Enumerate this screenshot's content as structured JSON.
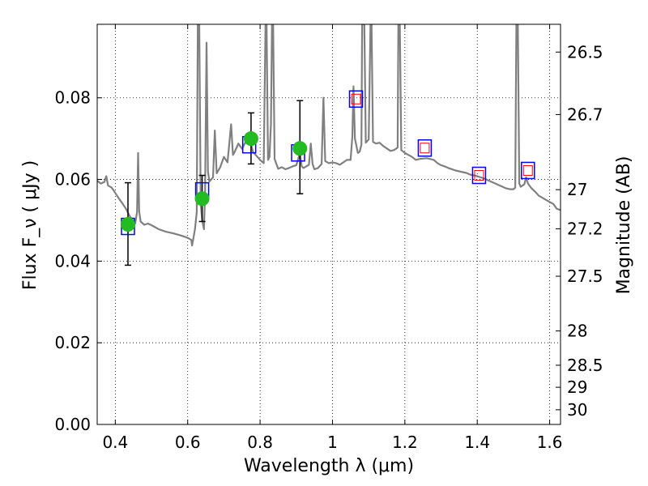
{
  "chart_data": {
    "type": "scatter",
    "xlabel": "Wavelength  λ (μm)",
    "ylabel": "Flux  F_ν  ( μJy )",
    "y2label": "Magnitude (AB)",
    "xlim": [
      0.35,
      1.63
    ],
    "ylim": [
      0.0,
      0.098
    ],
    "grid": true,
    "x_ticks": [
      0.4,
      0.6,
      0.8,
      1.0,
      1.2,
      1.4,
      1.6
    ],
    "x_tick_labels": [
      "0.4",
      "0.6",
      "0.8",
      "1",
      "1.2",
      "1.4",
      "1.6"
    ],
    "y_ticks": [
      0.0,
      0.02,
      0.04,
      0.06,
      0.08
    ],
    "y_tick_labels": [
      "0.00",
      "0.02",
      "0.04",
      "0.06",
      "0.08"
    ],
    "mag_ticks": [
      {
        "label": "26.5",
        "flux": 0.0912
      },
      {
        "label": "26.7",
        "flux": 0.0759
      },
      {
        "label": "27",
        "flux": 0.0575
      },
      {
        "label": "27.2",
        "flux": 0.0479
      },
      {
        "label": "27.5",
        "flux": 0.0363
      },
      {
        "label": "28",
        "flux": 0.0229
      },
      {
        "label": "28.5",
        "flux": 0.0145
      },
      {
        "label": "29",
        "flux": 0.0091
      },
      {
        "label": "30",
        "flux": 0.0036
      }
    ],
    "series": [
      {
        "kind": "model_spectrum",
        "color": "#808080",
        "points": [
          [
            0.35,
            0.0597
          ],
          [
            0.36,
            0.059
          ],
          [
            0.37,
            0.0594
          ],
          [
            0.375,
            0.0608
          ],
          [
            0.38,
            0.0585
          ],
          [
            0.39,
            0.058
          ],
          [
            0.4,
            0.0567
          ],
          [
            0.41,
            0.0553
          ],
          [
            0.42,
            0.0541
          ],
          [
            0.43,
            0.0527
          ],
          [
            0.44,
            0.051
          ],
          [
            0.45,
            0.0497
          ],
          [
            0.455,
            0.0492
          ],
          [
            0.46,
            0.052
          ],
          [
            0.463,
            0.0665
          ],
          [
            0.466,
            0.0522
          ],
          [
            0.47,
            0.0497
          ],
          [
            0.48,
            0.0489
          ],
          [
            0.49,
            0.0492
          ],
          [
            0.5,
            0.0488
          ],
          [
            0.52,
            0.0478
          ],
          [
            0.54,
            0.0472
          ],
          [
            0.56,
            0.0468
          ],
          [
            0.58,
            0.0463
          ],
          [
            0.6,
            0.0457
          ],
          [
            0.61,
            0.0452
          ],
          [
            0.612,
            0.0438
          ],
          [
            0.615,
            0.0452
          ],
          [
            0.62,
            0.0478
          ],
          [
            0.625,
            0.052
          ],
          [
            0.628,
            0.098
          ],
          [
            0.632,
            0.098
          ],
          [
            0.636,
            0.054
          ],
          [
            0.64,
            0.05
          ],
          [
            0.645,
            0.0478
          ],
          [
            0.648,
            0.057
          ],
          [
            0.652,
            0.0935
          ],
          [
            0.656,
            0.062
          ],
          [
            0.66,
            0.0595
          ],
          [
            0.67,
            0.0605
          ],
          [
            0.675,
            0.072
          ],
          [
            0.68,
            0.0615
          ],
          [
            0.69,
            0.063
          ],
          [
            0.7,
            0.0655
          ],
          [
            0.71,
            0.0642
          ],
          [
            0.72,
            0.0735
          ],
          [
            0.725,
            0.066
          ],
          [
            0.73,
            0.0668
          ],
          [
            0.74,
            0.0688
          ],
          [
            0.75,
            0.0675
          ],
          [
            0.76,
            0.0692
          ],
          [
            0.77,
            0.0705
          ],
          [
            0.78,
            0.0668
          ],
          [
            0.79,
            0.0658
          ],
          [
            0.8,
            0.0648
          ],
          [
            0.81,
            0.064
          ],
          [
            0.815,
            0.098
          ],
          [
            0.818,
            0.098
          ],
          [
            0.822,
            0.0648
          ],
          [
            0.826,
            0.0655
          ],
          [
            0.83,
            0.0735
          ],
          [
            0.833,
            0.098
          ],
          [
            0.836,
            0.098
          ],
          [
            0.84,
            0.065
          ],
          [
            0.85,
            0.0626
          ],
          [
            0.86,
            0.063
          ],
          [
            0.87,
            0.0625
          ],
          [
            0.88,
            0.0628
          ],
          [
            0.89,
            0.0632
          ],
          [
            0.9,
            0.0635
          ],
          [
            0.91,
            0.0665
          ],
          [
            0.915,
            0.0632
          ],
          [
            0.92,
            0.0628
          ],
          [
            0.935,
            0.0636
          ],
          [
            0.94,
            0.0688
          ],
          [
            0.945,
            0.0638
          ],
          [
            0.95,
            0.0625
          ],
          [
            0.96,
            0.0628
          ],
          [
            0.97,
            0.0638
          ],
          [
            0.975,
            0.08
          ],
          [
            0.98,
            0.0645
          ],
          [
            0.99,
            0.064
          ],
          [
            1.0,
            0.0642
          ],
          [
            1.01,
            0.064
          ],
          [
            1.02,
            0.0636
          ],
          [
            1.03,
            0.0642
          ],
          [
            1.04,
            0.0648
          ],
          [
            1.05,
            0.0648
          ],
          [
            1.055,
            0.0705
          ],
          [
            1.058,
            0.0828
          ],
          [
            1.062,
            0.07
          ],
          [
            1.07,
            0.0665
          ],
          [
            1.075,
            0.0668
          ],
          [
            1.08,
            0.0685
          ],
          [
            1.082,
            0.098
          ],
          [
            1.088,
            0.098
          ],
          [
            1.092,
            0.069
          ],
          [
            1.1,
            0.0698
          ],
          [
            1.105,
            0.098
          ],
          [
            1.108,
            0.098
          ],
          [
            1.112,
            0.0692
          ],
          [
            1.12,
            0.0688
          ],
          [
            1.13,
            0.069
          ],
          [
            1.14,
            0.0682
          ],
          [
            1.15,
            0.0676
          ],
          [
            1.16,
            0.067
          ],
          [
            1.17,
            0.0672
          ],
          [
            1.18,
            0.0678
          ],
          [
            1.182,
            0.098
          ],
          [
            1.186,
            0.098
          ],
          [
            1.19,
            0.0672
          ],
          [
            1.2,
            0.0665
          ],
          [
            1.21,
            0.066
          ],
          [
            1.22,
            0.0655
          ],
          [
            1.23,
            0.0648
          ],
          [
            1.24,
            0.065
          ],
          [
            1.25,
            0.0651
          ],
          [
            1.26,
            0.0652
          ],
          [
            1.27,
            0.065
          ],
          [
            1.28,
            0.0648
          ],
          [
            1.29,
            0.064
          ],
          [
            1.3,
            0.0635
          ],
          [
            1.31,
            0.0632
          ],
          [
            1.32,
            0.0628
          ],
          [
            1.33,
            0.0625
          ],
          [
            1.34,
            0.0622
          ],
          [
            1.35,
            0.062
          ],
          [
            1.36,
            0.0618
          ],
          [
            1.37,
            0.0616
          ],
          [
            1.38,
            0.0612
          ],
          [
            1.39,
            0.061
          ],
          [
            1.4,
            0.0608
          ],
          [
            1.41,
            0.0605
          ],
          [
            1.42,
            0.0602
          ],
          [
            1.43,
            0.0598
          ],
          [
            1.44,
            0.0594
          ],
          [
            1.45,
            0.059
          ],
          [
            1.46,
            0.0586
          ],
          [
            1.47,
            0.0582
          ],
          [
            1.48,
            0.0578
          ],
          [
            1.49,
            0.0576
          ],
          [
            1.5,
            0.0576
          ],
          [
            1.505,
            0.058
          ],
          [
            1.508,
            0.098
          ],
          [
            1.512,
            0.098
          ],
          [
            1.516,
            0.059
          ],
          [
            1.52,
            0.0582
          ],
          [
            1.53,
            0.0588
          ],
          [
            1.535,
            0.0605
          ],
          [
            1.54,
            0.059
          ],
          [
            1.55,
            0.0578
          ],
          [
            1.56,
            0.057
          ],
          [
            1.57,
            0.056
          ],
          [
            1.58,
            0.0555
          ],
          [
            1.59,
            0.055
          ],
          [
            1.6,
            0.0545
          ],
          [
            1.61,
            0.054
          ],
          [
            1.62,
            0.0528
          ],
          [
            1.63,
            0.0525
          ]
        ]
      },
      {
        "kind": "model_photometry",
        "color": "#0000ff",
        "marker": "open-square",
        "points": [
          [
            0.435,
            0.0485
          ],
          [
            0.64,
            0.0572
          ],
          [
            0.77,
            0.0685
          ],
          [
            0.905,
            0.0665
          ],
          [
            1.065,
            0.0797
          ],
          [
            1.255,
            0.0677
          ],
          [
            1.405,
            0.061
          ],
          [
            1.54,
            0.0622
          ]
        ]
      },
      {
        "kind": "observed_detections",
        "color": "#22bb22",
        "marker": "filled-circle",
        "points": [
          {
            "x": 0.435,
            "y": 0.049,
            "err_low": 0.039,
            "err_high": 0.0592
          },
          {
            "x": 0.64,
            "y": 0.0553,
            "err_low": 0.0497,
            "err_high": 0.061
          },
          {
            "x": 0.775,
            "y": 0.07,
            "err_low": 0.0638,
            "err_high": 0.0763
          },
          {
            "x": 0.91,
            "y": 0.0676,
            "err_low": 0.0565,
            "err_high": 0.0793
          }
        ]
      },
      {
        "kind": "upper_limits",
        "color": "#ff0000",
        "marker": "open-square",
        "points": [
          [
            1.065,
            0.0797
          ],
          [
            1.255,
            0.0677
          ],
          [
            1.405,
            0.061
          ],
          [
            1.54,
            0.0622
          ]
        ]
      }
    ]
  }
}
